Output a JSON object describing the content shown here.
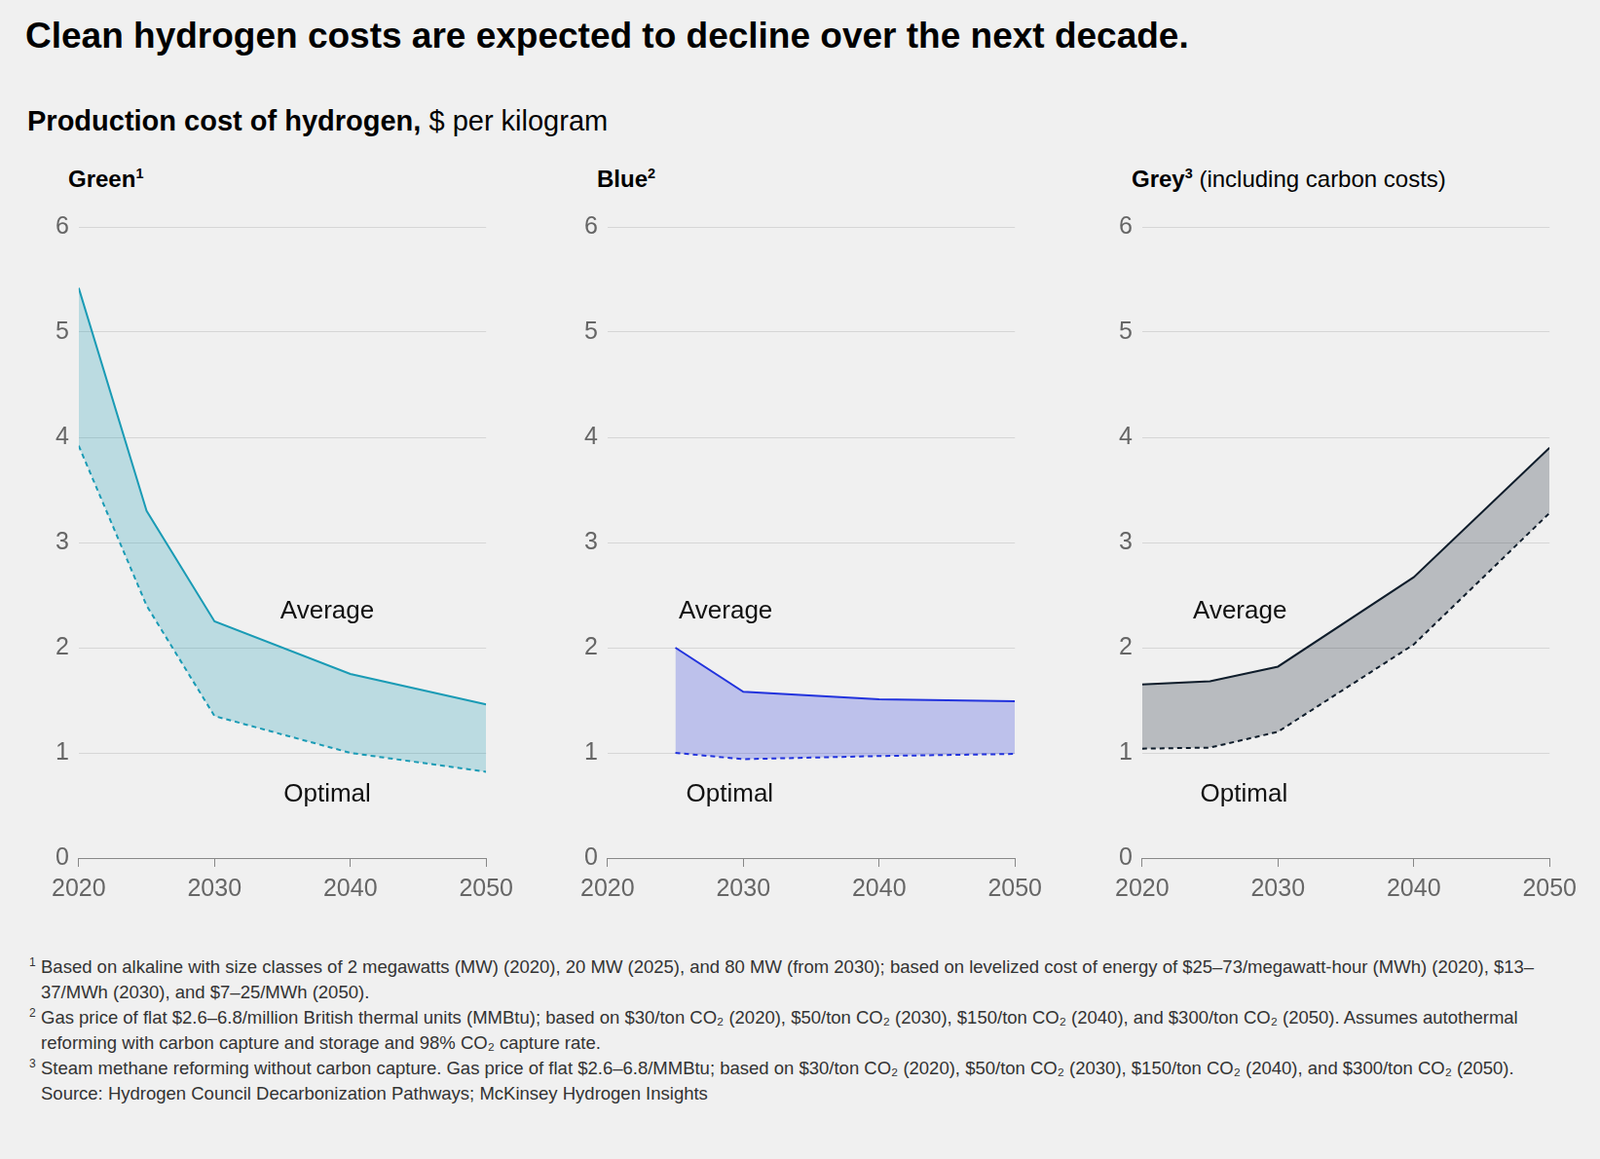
{
  "title": "Clean hydrogen costs are expected to decline over the next decade.",
  "subtitle_bold": "Production cost of hydrogen,",
  "subtitle": "$ per kilogram",
  "chart_data": [
    {
      "type": "line",
      "title": "Green",
      "title_superscript": "1",
      "x": [
        2020,
        2025,
        2030,
        2040,
        2050
      ],
      "series": [
        {
          "name": "Average",
          "color": "#1a9bb5",
          "line_style": "solid",
          "values": [
            5.42,
            3.3,
            2.25,
            1.75,
            1.46
          ]
        },
        {
          "name": "Optimal",
          "color": "#1a9bb5",
          "line_style": "dashed",
          "values": [
            3.92,
            2.4,
            1.35,
            1.0,
            0.82
          ]
        }
      ],
      "xlim": [
        2020,
        2050
      ],
      "xticks": [
        2020,
        2030,
        2040,
        2050
      ],
      "ylim": [
        0,
        6
      ],
      "yticks": [
        0,
        1,
        2,
        3,
        4,
        5,
        6
      ],
      "grid": true
    },
    {
      "type": "line",
      "title": "Blue",
      "title_superscript": "2",
      "x": [
        2025,
        2030,
        2040,
        2050
      ],
      "series": [
        {
          "name": "Average",
          "color": "#2233dd",
          "line_style": "solid",
          "values": [
            2.0,
            1.58,
            1.51,
            1.49
          ]
        },
        {
          "name": "Optimal",
          "color": "#2233dd",
          "line_style": "dashed",
          "values": [
            1.0,
            0.94,
            0.97,
            0.99
          ]
        }
      ],
      "xlim": [
        2020,
        2050
      ],
      "xticks": [
        2020,
        2030,
        2040,
        2050
      ],
      "ylim": [
        0,
        6
      ],
      "yticks": [
        0,
        1,
        2,
        3,
        4,
        5,
        6
      ],
      "grid": true
    },
    {
      "type": "line",
      "title": "Grey",
      "title_superscript": "3",
      "subtitle": "(including carbon costs)",
      "x": [
        2020,
        2025,
        2030,
        2040,
        2050
      ],
      "series": [
        {
          "name": "Average",
          "color": "#0f1d2b",
          "line_style": "solid",
          "values": [
            1.65,
            1.68,
            1.82,
            2.67,
            3.9
          ]
        },
        {
          "name": "Optimal",
          "color": "#0f1d2b",
          "line_style": "dashed",
          "values": [
            1.04,
            1.05,
            1.2,
            2.03,
            3.28
          ]
        }
      ],
      "xlim": [
        2020,
        2050
      ],
      "xticks": [
        2020,
        2030,
        2040,
        2050
      ],
      "ylim": [
        0,
        6
      ],
      "yticks": [
        0,
        1,
        2,
        3,
        4,
        5,
        6
      ],
      "grid": true
    }
  ],
  "footnotes": [
    {
      "mark": "1",
      "text": "Based on alkaline with size classes of 2 megawatts (MW) (2020), 20 MW (2025), and 80 MW (from 2030); based on levelized cost of energy of $25–73/megawatt-hour (MWh) (2020), $13–37/MWh (2030), and $7–25/MWh (2050)."
    },
    {
      "mark": "2",
      "text": "Gas price of flat $2.6–6.8/million British thermal units (MMBtu); based on $30/ton CO₂ (2020), $50/ton CO₂ (2030), $150/ton CO₂ (2040), and $300/ton CO₂ (2050). Assumes autothermal reforming with carbon capture and storage and 98% CO₂ capture rate."
    },
    {
      "mark": "3",
      "text": "Steam methane reforming without carbon capture. Gas price of flat $2.6–6.8/MMBtu; based on $30/ton CO₂ (2020), $50/ton CO₂ (2030), $150/ton CO₂ (2040), and $300/ton CO₂ (2050)."
    }
  ],
  "source": "Source: Hydrogen Council Decarbonization Pathways; McKinsey Hydrogen Insights"
}
